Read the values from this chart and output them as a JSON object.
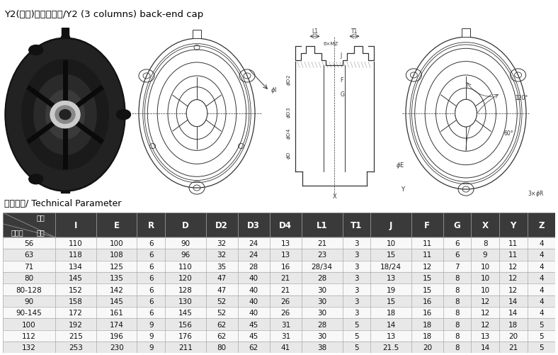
{
  "title": "Y2(三柱)系列后端盖/Y2 (3 columns) back-end cap",
  "section_title": "技术参数/ Technical Parameter",
  "columns": [
    "I",
    "E",
    "R",
    "D",
    "D2",
    "D3",
    "D4",
    "L1",
    "T1",
    "J",
    "F",
    "G",
    "X",
    "Y",
    "Z"
  ],
  "rows": [
    {
      "jzh": "56",
      "I": "110",
      "E": "100",
      "R": "6",
      "D": "90",
      "D2": "32",
      "D3": "24",
      "D4": "13",
      "L1": "21",
      "T1": "3",
      "J": "10",
      "F": "11",
      "G": "6",
      "X": "8",
      "Y": "11",
      "Z": "4"
    },
    {
      "jzh": "63",
      "I": "118",
      "E": "108",
      "R": "6",
      "D": "96",
      "D2": "32",
      "D3": "24",
      "D4": "13",
      "L1": "23",
      "T1": "3",
      "J": "15",
      "F": "11",
      "G": "6",
      "X": "9",
      "Y": "11",
      "Z": "4"
    },
    {
      "jzh": "71",
      "I": "134",
      "E": "125",
      "R": "6",
      "D": "110",
      "D2": "35",
      "D3": "28",
      "D4": "16",
      "L1": "28/34",
      "T1": "3",
      "J": "18/24",
      "F": "12",
      "G": "7",
      "X": "10",
      "Y": "12",
      "Z": "4"
    },
    {
      "jzh": "80",
      "I": "145",
      "E": "135",
      "R": "6",
      "D": "120",
      "D2": "47",
      "D3": "40",
      "D4": "21",
      "L1": "28",
      "T1": "3",
      "J": "13",
      "F": "15",
      "G": "8",
      "X": "10",
      "Y": "12",
      "Z": "4"
    },
    {
      "jzh": "80-128",
      "I": "152",
      "E": "142",
      "R": "6",
      "D": "128",
      "D2": "47",
      "D3": "40",
      "D4": "21",
      "L1": "30",
      "T1": "3",
      "J": "19",
      "F": "15",
      "G": "8",
      "X": "10",
      "Y": "12",
      "Z": "4"
    },
    {
      "jzh": "90",
      "I": "158",
      "E": "145",
      "R": "6",
      "D": "130",
      "D2": "52",
      "D3": "40",
      "D4": "26",
      "L1": "30",
      "T1": "3",
      "J": "15",
      "F": "16",
      "G": "8",
      "X": "12",
      "Y": "14",
      "Z": "4"
    },
    {
      "jzh": "90-145",
      "I": "172",
      "E": "161",
      "R": "6",
      "D": "145",
      "D2": "52",
      "D3": "40",
      "D4": "26",
      "L1": "30",
      "T1": "3",
      "J": "18",
      "F": "16",
      "G": "8",
      "X": "12",
      "Y": "14",
      "Z": "4"
    },
    {
      "jzh": "100",
      "I": "192",
      "E": "174",
      "R": "9",
      "D": "156",
      "D2": "62",
      "D3": "45",
      "D4": "31",
      "L1": "28",
      "T1": "5",
      "J": "14",
      "F": "18",
      "G": "8",
      "X": "12",
      "Y": "18",
      "Z": "5"
    },
    {
      "jzh": "112",
      "I": "215",
      "E": "196",
      "R": "9",
      "D": "176",
      "D2": "62",
      "D3": "45",
      "D4": "31",
      "L1": "30",
      "T1": "5",
      "J": "13",
      "F": "18",
      "G": "8",
      "X": "13",
      "Y": "20",
      "Z": "5"
    },
    {
      "jzh": "132",
      "I": "253",
      "E": "230",
      "R": "9",
      "D": "211",
      "D2": "80",
      "D3": "62",
      "D4": "41",
      "L1": "38",
      "T1": "5",
      "J": "21.5",
      "F": "20",
      "G": "8",
      "X": "14",
      "Y": "21",
      "Z": "5"
    }
  ],
  "header_bg": "#3a3a3a",
  "header_text_color": "#ffffff",
  "row_bg_even": "#e8e8e8",
  "row_bg_odd": "#f8f8f8",
  "row_text_color": "#111111",
  "border_color": "#aaaaaa",
  "bg_color": "#ffffff",
  "title_fontsize": 9.5,
  "section_fontsize": 9,
  "table_fontsize": 7.5,
  "header_fontsize": 8.5
}
